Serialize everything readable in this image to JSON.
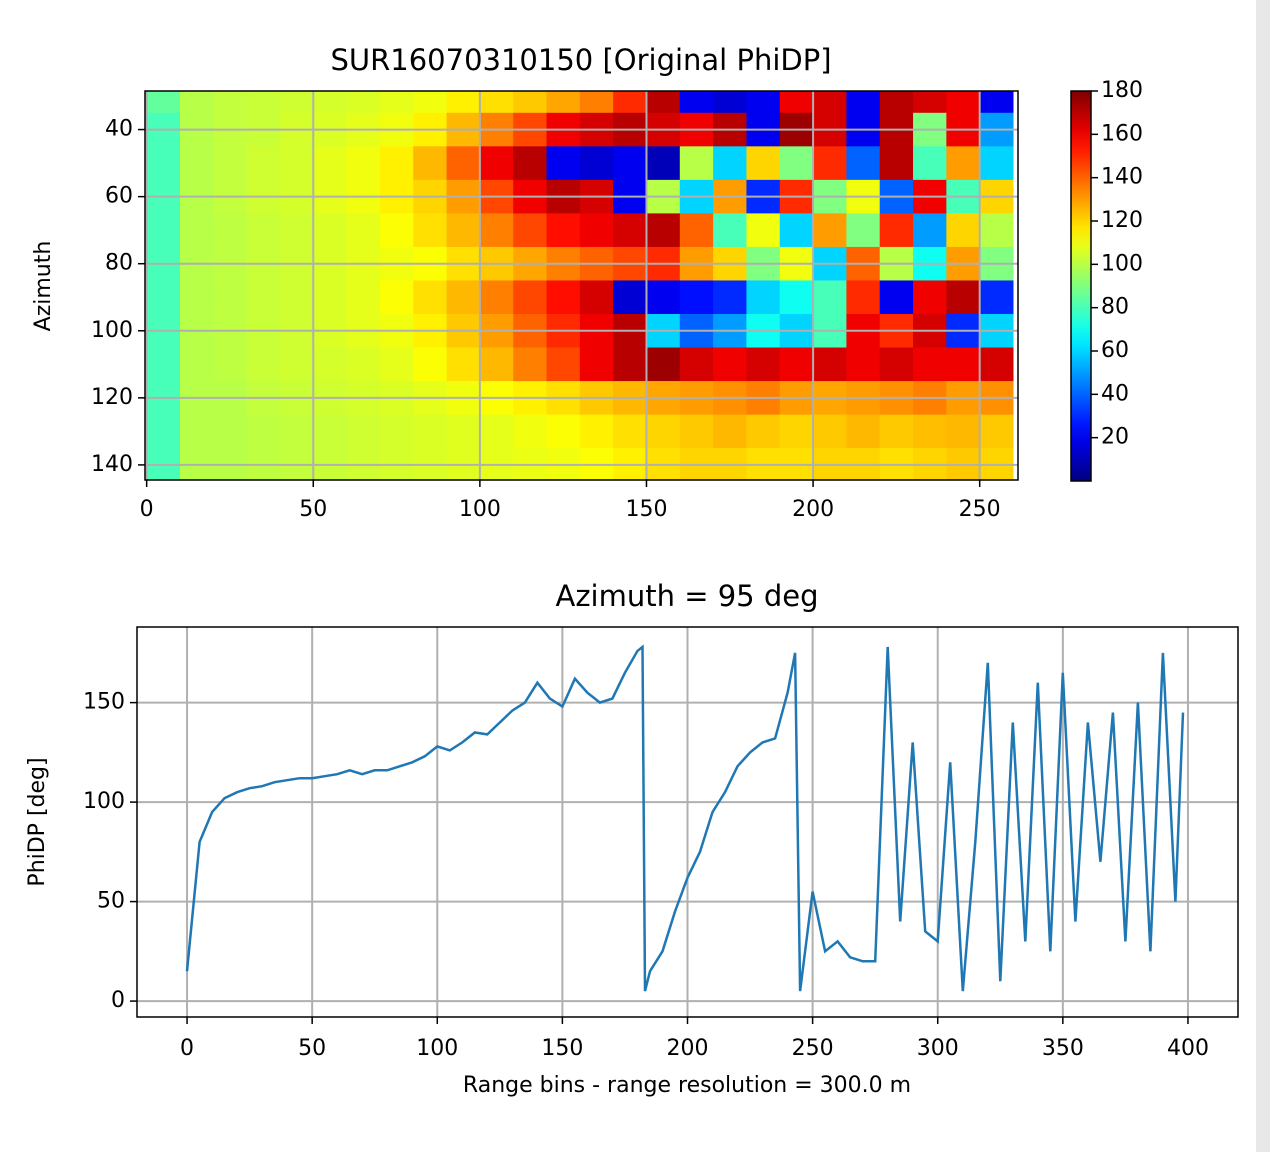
{
  "chart_data": [
    {
      "type": "heatmap",
      "title": "SUR16070310150 [Original PhiDP]",
      "ylabel": "Azimuth",
      "x": [
        5,
        15,
        25,
        35,
        45,
        55,
        65,
        75,
        85,
        95,
        105,
        115,
        125,
        135,
        145,
        155,
        165,
        175,
        185,
        195,
        205,
        215,
        225,
        235,
        245,
        255
      ],
      "y": [
        30,
        40,
        50,
        60,
        70,
        80,
        90,
        100,
        110,
        120,
        130,
        140
      ],
      "z": [
        [
          85,
          100,
          102,
          103,
          104,
          105,
          106,
          108,
          110,
          115,
          118,
          122,
          128,
          135,
          150,
          170,
          20,
          15,
          20,
          160,
          165,
          20,
          170,
          165,
          160,
          20
        ],
        [
          80,
          100,
          102,
          103,
          105,
          106,
          108,
          110,
          115,
          125,
          135,
          145,
          160,
          165,
          170,
          165,
          160,
          170,
          20,
          175,
          165,
          20,
          170,
          90,
          160,
          50
        ],
        [
          80,
          100,
          102,
          104,
          105,
          108,
          110,
          115,
          125,
          140,
          160,
          170,
          20,
          15,
          20,
          10,
          100,
          60,
          120,
          90,
          150,
          40,
          170,
          80,
          130,
          60
        ],
        [
          80,
          100,
          102,
          104,
          105,
          108,
          110,
          115,
          120,
          130,
          145,
          160,
          170,
          165,
          20,
          100,
          60,
          130,
          30,
          150,
          90,
          110,
          40,
          160,
          80,
          120
        ],
        [
          80,
          100,
          101,
          103,
          104,
          106,
          108,
          112,
          118,
          125,
          135,
          145,
          155,
          160,
          165,
          170,
          140,
          80,
          110,
          60,
          130,
          90,
          150,
          50,
          120,
          100
        ],
        [
          80,
          100,
          101,
          103,
          104,
          106,
          108,
          110,
          112,
          118,
          122,
          128,
          135,
          140,
          145,
          150,
          130,
          120,
          90,
          110,
          60,
          140,
          100,
          70,
          130,
          90
        ],
        [
          80,
          100,
          101,
          103,
          104,
          106,
          108,
          112,
          118,
          125,
          135,
          145,
          155,
          165,
          15,
          20,
          25,
          30,
          60,
          70,
          80,
          150,
          20,
          160,
          170,
          30
        ],
        [
          80,
          100,
          101,
          103,
          104,
          106,
          108,
          110,
          115,
          122,
          130,
          140,
          150,
          160,
          170,
          60,
          40,
          50,
          70,
          60,
          80,
          160,
          150,
          165,
          30,
          60
        ],
        [
          80,
          100,
          101,
          103,
          104,
          105,
          106,
          108,
          112,
          118,
          125,
          135,
          145,
          160,
          170,
          175,
          165,
          160,
          165,
          160,
          165,
          160,
          165,
          160,
          160,
          165
        ],
        [
          80,
          100,
          100,
          102,
          103,
          104,
          105,
          106,
          108,
          110,
          112,
          115,
          118,
          122,
          125,
          128,
          130,
          132,
          135,
          130,
          128,
          130,
          132,
          135,
          130,
          132
        ],
        [
          80,
          100,
          100,
          101,
          102,
          103,
          104,
          105,
          106,
          107,
          108,
          110,
          112,
          115,
          118,
          120,
          122,
          125,
          122,
          120,
          122,
          125,
          122,
          124,
          125,
          122
        ],
        [
          80,
          100,
          100,
          101,
          102,
          103,
          104,
          105,
          106,
          107,
          108,
          109,
          110,
          112,
          115,
          118,
          120,
          120,
          118,
          118,
          120,
          120,
          118,
          120,
          122,
          120
        ]
      ],
      "xlim": [
        -0.5,
        261.5
      ],
      "ylim": [
        144.5,
        28.5
      ],
      "xticks": [
        0,
        50,
        100,
        150,
        200,
        250
      ],
      "yticks": [
        40,
        60,
        80,
        100,
        120,
        140
      ],
      "grid": true,
      "colormap": "jet",
      "clim": [
        0,
        180
      ],
      "cbarticks": [
        20,
        40,
        60,
        80,
        100,
        120,
        140,
        160,
        180
      ]
    },
    {
      "type": "line",
      "title": "Azimuth = 95 deg",
      "xlabel": "Range bins - range resolution = 300.0 m",
      "ylabel": "PhiDP [deg]",
      "color": "#1f77b4",
      "x": [
        0,
        5,
        10,
        15,
        20,
        25,
        30,
        35,
        40,
        45,
        50,
        55,
        60,
        65,
        70,
        75,
        80,
        85,
        90,
        95,
        100,
        105,
        110,
        115,
        120,
        125,
        130,
        135,
        140,
        145,
        150,
        155,
        160,
        165,
        170,
        175,
        180,
        182,
        183,
        185,
        190,
        195,
        200,
        205,
        210,
        215,
        220,
        225,
        230,
        235,
        240,
        243,
        245,
        250,
        255,
        260,
        265,
        270,
        275,
        280,
        285,
        290,
        295,
        300,
        305,
        310,
        315,
        320,
        325,
        330,
        335,
        340,
        345,
        350,
        355,
        360,
        365,
        370,
        375,
        380,
        385,
        390,
        395,
        398
      ],
      "values": [
        15,
        80,
        95,
        102,
        105,
        107,
        108,
        110,
        111,
        112,
        112,
        113,
        114,
        116,
        114,
        116,
        116,
        118,
        120,
        123,
        128,
        126,
        130,
        135,
        134,
        140,
        146,
        150,
        160,
        152,
        148,
        162,
        155,
        150,
        152,
        165,
        176,
        178,
        5,
        15,
        25,
        45,
        62,
        75,
        95,
        105,
        118,
        125,
        130,
        132,
        155,
        175,
        5,
        55,
        25,
        30,
        22,
        20,
        20,
        178,
        40,
        130,
        35,
        30,
        120,
        5,
        80,
        170,
        10,
        140,
        30,
        160,
        25,
        165,
        40,
        140,
        70,
        145,
        30,
        150,
        25,
        175,
        50,
        145
      ],
      "xlim": [
        -20,
        420
      ],
      "ylim": [
        -8,
        188
      ],
      "xticks": [
        0,
        50,
        100,
        150,
        200,
        250,
        300,
        350,
        400
      ],
      "yticks": [
        0,
        50,
        100,
        150
      ],
      "grid": true
    }
  ]
}
